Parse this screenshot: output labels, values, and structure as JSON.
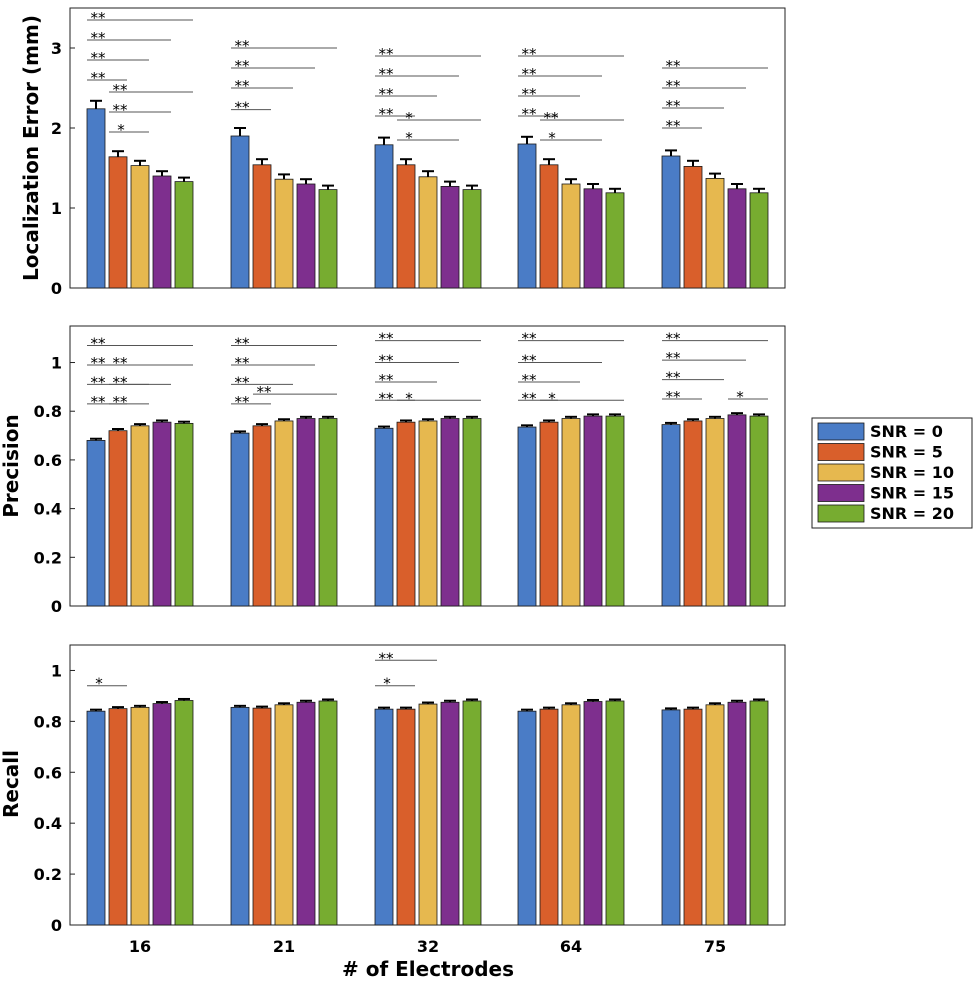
{
  "chart_data": {
    "type": "bar",
    "xlabel": "# of Electrodes",
    "categories": [
      "16",
      "21",
      "32",
      "64",
      "75"
    ],
    "legend": {
      "placement": "right",
      "entries": [
        "SNR = 0",
        "SNR = 5",
        "SNR = 10",
        "SNR = 15",
        "SNR = 20"
      ]
    },
    "series_colors": [
      "#4a7cc6",
      "#d95f2b",
      "#e6b84f",
      "#7e2f8e",
      "#77ac30"
    ],
    "panels": [
      {
        "ylabel": "Localization Error (mm)",
        "ylim": [
          0,
          3.5
        ],
        "yticks": [
          0,
          1,
          2,
          3
        ],
        "ytick_labels": [
          "0",
          "1",
          "2",
          "3"
        ],
        "series": [
          {
            "name": "SNR = 0",
            "values": [
              2.24,
              1.9,
              1.79,
              1.8,
              1.65
            ],
            "errors": [
              0.1,
              0.1,
              0.09,
              0.09,
              0.07
            ]
          },
          {
            "name": "SNR = 5",
            "values": [
              1.64,
              1.54,
              1.54,
              1.54,
              1.52
            ],
            "errors": [
              0.07,
              0.07,
              0.07,
              0.07,
              0.07
            ]
          },
          {
            "name": "SNR = 10",
            "values": [
              1.53,
              1.36,
              1.39,
              1.3,
              1.37
            ],
            "errors": [
              0.06,
              0.06,
              0.07,
              0.06,
              0.06
            ]
          },
          {
            "name": "SNR = 15",
            "values": [
              1.4,
              1.3,
              1.27,
              1.24,
              1.24
            ],
            "errors": [
              0.06,
              0.06,
              0.06,
              0.06,
              0.06
            ]
          },
          {
            "name": "SNR = 20",
            "values": [
              1.33,
              1.23,
              1.23,
              1.19,
              1.19
            ],
            "errors": [
              0.05,
              0.05,
              0.05,
              0.05,
              0.05
            ]
          }
        ],
        "significance": [
          {
            "group": 0,
            "from": 0,
            "to": 4,
            "level": 3.35,
            "label": "**"
          },
          {
            "group": 0,
            "from": 0,
            "to": 3,
            "level": 3.1,
            "label": "**"
          },
          {
            "group": 0,
            "from": 0,
            "to": 2,
            "level": 2.85,
            "label": "**"
          },
          {
            "group": 0,
            "from": 0,
            "to": 1,
            "level": 2.6,
            "label": "**"
          },
          {
            "group": 0,
            "from": 1,
            "to": 4,
            "level": 2.45,
            "label": "**"
          },
          {
            "group": 0,
            "from": 1,
            "to": 3,
            "level": 2.2,
            "label": "**"
          },
          {
            "group": 0,
            "from": 1,
            "to": 2,
            "level": 1.95,
            "label": "*"
          },
          {
            "group": 1,
            "from": 0,
            "to": 4,
            "level": 3.0,
            "label": "**"
          },
          {
            "group": 1,
            "from": 0,
            "to": 3,
            "level": 2.75,
            "label": "**"
          },
          {
            "group": 1,
            "from": 0,
            "to": 2,
            "level": 2.5,
            "label": "**"
          },
          {
            "group": 1,
            "from": 0,
            "to": 1,
            "level": 2.23,
            "label": "**"
          },
          {
            "group": 2,
            "from": 0,
            "to": 4,
            "level": 2.9,
            "label": "**"
          },
          {
            "group": 2,
            "from": 0,
            "to": 3,
            "level": 2.65,
            "label": "**"
          },
          {
            "group": 2,
            "from": 0,
            "to": 2,
            "level": 2.4,
            "label": "**"
          },
          {
            "group": 2,
            "from": 0,
            "to": 1,
            "level": 2.15,
            "label": "**"
          },
          {
            "group": 2,
            "from": 1,
            "to": 4,
            "level": 2.1,
            "label": "*"
          },
          {
            "group": 2,
            "from": 1,
            "to": 3,
            "level": 1.85,
            "label": "*"
          },
          {
            "group": 3,
            "from": 0,
            "to": 4,
            "level": 2.9,
            "label": "**"
          },
          {
            "group": 3,
            "from": 0,
            "to": 3,
            "level": 2.65,
            "label": "**"
          },
          {
            "group": 3,
            "from": 0,
            "to": 2,
            "level": 2.4,
            "label": "**"
          },
          {
            "group": 3,
            "from": 0,
            "to": 1,
            "level": 2.15,
            "label": "**"
          },
          {
            "group": 3,
            "from": 1,
            "to": 4,
            "level": 2.1,
            "label": "**"
          },
          {
            "group": 3,
            "from": 1,
            "to": 3,
            "level": 1.85,
            "label": "*"
          },
          {
            "group": 4,
            "from": 0,
            "to": 4,
            "level": 2.75,
            "label": "**"
          },
          {
            "group": 4,
            "from": 0,
            "to": 3,
            "level": 2.5,
            "label": "**"
          },
          {
            "group": 4,
            "from": 0,
            "to": 2,
            "level": 2.25,
            "label": "**"
          },
          {
            "group": 4,
            "from": 0,
            "to": 1,
            "level": 2.0,
            "label": "**"
          }
        ]
      },
      {
        "ylabel": "Precision",
        "ylim": [
          0,
          1.15
        ],
        "yticks": [
          0,
          0.2,
          0.4,
          0.6,
          0.8,
          1.0
        ],
        "ytick_labels": [
          "0",
          "0.2",
          "0.4",
          "0.6",
          "0.8",
          "1"
        ],
        "series": [
          {
            "name": "SNR = 0",
            "values": [
              0.68,
              0.71,
              0.73,
              0.735,
              0.745
            ],
            "errors": [
              0.007,
              0.007,
              0.007,
              0.007,
              0.007
            ]
          },
          {
            "name": "SNR = 5",
            "values": [
              0.72,
              0.74,
              0.755,
              0.755,
              0.76
            ],
            "errors": [
              0.007,
              0.007,
              0.007,
              0.007,
              0.007
            ]
          },
          {
            "name": "SNR = 10",
            "values": [
              0.74,
              0.76,
              0.76,
              0.77,
              0.77
            ],
            "errors": [
              0.007,
              0.007,
              0.007,
              0.007,
              0.007
            ]
          },
          {
            "name": "SNR = 15",
            "values": [
              0.755,
              0.77,
              0.77,
              0.78,
              0.785
            ],
            "errors": [
              0.007,
              0.007,
              0.007,
              0.007,
              0.007
            ]
          },
          {
            "name": "SNR = 20",
            "values": [
              0.75,
              0.77,
              0.77,
              0.78,
              0.78
            ],
            "errors": [
              0.007,
              0.007,
              0.007,
              0.007,
              0.007
            ]
          }
        ],
        "significance": [
          {
            "group": 0,
            "from": 0,
            "to": 4,
            "level": 1.07,
            "label": "**"
          },
          {
            "group": 0,
            "from": 0,
            "to": 3,
            "level": 0.99,
            "label": "**"
          },
          {
            "group": 0,
            "from": 1,
            "to": 4,
            "level": 0.99,
            "label": "**"
          },
          {
            "group": 0,
            "from": 0,
            "to": 2,
            "level": 0.91,
            "label": "**"
          },
          {
            "group": 0,
            "from": 1,
            "to": 3,
            "level": 0.91,
            "label": "**"
          },
          {
            "group": 0,
            "from": 0,
            "to": 1,
            "level": 0.83,
            "label": "**"
          },
          {
            "group": 0,
            "from": 1,
            "to": 2,
            "level": 0.83,
            "label": "**"
          },
          {
            "group": 1,
            "from": 0,
            "to": 4,
            "level": 1.07,
            "label": "**"
          },
          {
            "group": 1,
            "from": 0,
            "to": 3,
            "level": 0.99,
            "label": "**"
          },
          {
            "group": 1,
            "from": 0,
            "to": 2,
            "level": 0.91,
            "label": "**"
          },
          {
            "group": 1,
            "from": 1,
            "to": 4,
            "level": 0.87,
            "label": "**"
          },
          {
            "group": 1,
            "from": 0,
            "to": 1,
            "level": 0.83,
            "label": "**"
          },
          {
            "group": 2,
            "from": 0,
            "to": 4,
            "level": 1.09,
            "label": "**"
          },
          {
            "group": 2,
            "from": 0,
            "to": 3,
            "level": 1.0,
            "label": "**"
          },
          {
            "group": 2,
            "from": 0,
            "to": 2,
            "level": 0.92,
            "label": "**"
          },
          {
            "group": 2,
            "from": 0,
            "to": 1,
            "level": 0.845,
            "label": "**"
          },
          {
            "group": 2,
            "from": 1,
            "to": 4,
            "level": 0.845,
            "label": "*"
          },
          {
            "group": 3,
            "from": 0,
            "to": 4,
            "level": 1.09,
            "label": "**"
          },
          {
            "group": 3,
            "from": 0,
            "to": 3,
            "level": 1.0,
            "label": "**"
          },
          {
            "group": 3,
            "from": 0,
            "to": 2,
            "level": 0.92,
            "label": "**"
          },
          {
            "group": 3,
            "from": 0,
            "to": 1,
            "level": 0.845,
            "label": "**"
          },
          {
            "group": 3,
            "from": 1,
            "to": 4,
            "level": 0.845,
            "label": "*"
          },
          {
            "group": 4,
            "from": 0,
            "to": 4,
            "level": 1.09,
            "label": "**"
          },
          {
            "group": 4,
            "from": 0,
            "to": 3,
            "level": 1.01,
            "label": "**"
          },
          {
            "group": 4,
            "from": 0,
            "to": 2,
            "level": 0.93,
            "label": "**"
          },
          {
            "group": 4,
            "from": 0,
            "to": 1,
            "level": 0.85,
            "label": "**"
          },
          {
            "group": 4,
            "from": 3,
            "to": 4,
            "level": 0.85,
            "label": "*"
          }
        ]
      },
      {
        "ylabel": "Recall",
        "ylim": [
          0,
          1.1
        ],
        "yticks": [
          0,
          0.2,
          0.4,
          0.6,
          0.8,
          1.0
        ],
        "ytick_labels": [
          "0",
          "0.2",
          "0.4",
          "0.6",
          "0.8",
          "1"
        ],
        "series": [
          {
            "name": "SNR = 0",
            "values": [
              0.84,
              0.855,
              0.848,
              0.84,
              0.845
            ],
            "errors": [
              0.006,
              0.006,
              0.006,
              0.006,
              0.006
            ]
          },
          {
            "name": "SNR = 5",
            "values": [
              0.85,
              0.852,
              0.848,
              0.848,
              0.848
            ],
            "errors": [
              0.006,
              0.006,
              0.006,
              0.006,
              0.006
            ]
          },
          {
            "name": "SNR = 10",
            "values": [
              0.855,
              0.865,
              0.868,
              0.865,
              0.865
            ],
            "errors": [
              0.006,
              0.006,
              0.006,
              0.006,
              0.006
            ]
          },
          {
            "name": "SNR = 15",
            "values": [
              0.87,
              0.875,
              0.875,
              0.878,
              0.875
            ],
            "errors": [
              0.006,
              0.006,
              0.006,
              0.006,
              0.006
            ]
          },
          {
            "name": "SNR = 20",
            "values": [
              0.882,
              0.88,
              0.88,
              0.88,
              0.88
            ],
            "errors": [
              0.006,
              0.006,
              0.006,
              0.006,
              0.006
            ]
          }
        ],
        "significance": [
          {
            "group": 0,
            "from": 0,
            "to": 1,
            "level": 0.94,
            "label": "*"
          },
          {
            "group": 2,
            "from": 0,
            "to": 2,
            "level": 1.04,
            "label": "**"
          },
          {
            "group": 2,
            "from": 0,
            "to": 1,
            "level": 0.94,
            "label": "*"
          }
        ]
      }
    ]
  }
}
